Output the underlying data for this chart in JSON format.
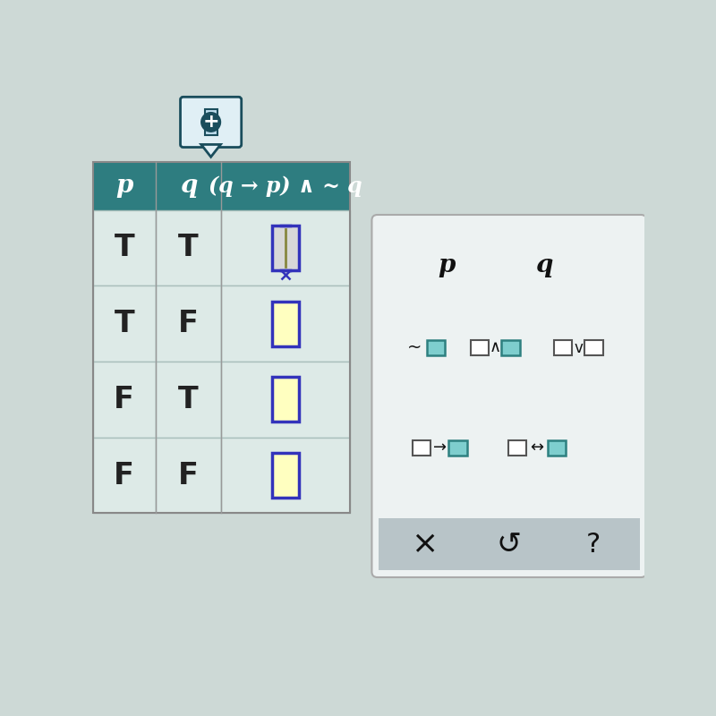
{
  "bg_color": "#cdd9d6",
  "table_header_color": "#2e7d80",
  "table_header_text_color": "#ffffff",
  "table_cell_color": "#ddeae7",
  "table_border_color": "#aabfbc",
  "col_headers": [
    "p",
    "q",
    "(q → p) ∧ ~ q"
  ],
  "rows": [
    [
      "T",
      "T"
    ],
    [
      "T",
      "F"
    ],
    [
      "F",
      "T"
    ],
    [
      "F",
      "F"
    ]
  ],
  "input_box_border_color": "#3333bb",
  "input_box_fill_color": "#ffffc0",
  "input_box_selected_fill": "#d8d8d8",
  "input_cursor_color": "#888840",
  "panel_bg": "#edf2f2",
  "panel_border": "#aaaaaa",
  "panel_text_color": "#111111",
  "add_button_dark": "#1a4d5c",
  "add_button_light": "#a8cfe0",
  "teal_box_outline": "#2e8080",
  "teal_box_fill": "#7ecece",
  "plain_box_outline": "#555555",
  "plain_box_fill": "#ffffff",
  "strip_color": "#b8c4c8"
}
